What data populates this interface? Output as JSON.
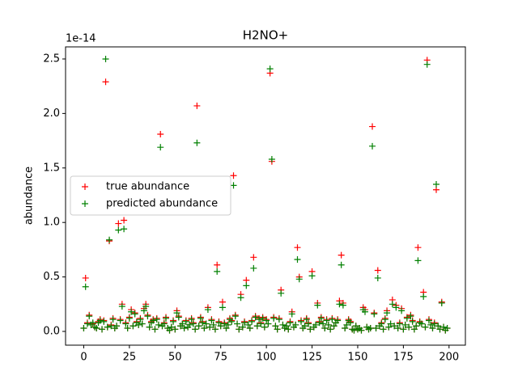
{
  "chart_data": {
    "type": "scatter",
    "title": "H2NO+",
    "ylabel": "abundance",
    "y_offset_label": "1e-14",
    "x": [
      0,
      1,
      2,
      3,
      4,
      5,
      6,
      7,
      8,
      9,
      10,
      11,
      12,
      13,
      14,
      15,
      16,
      17,
      18,
      19,
      20,
      21,
      22,
      23,
      24,
      25,
      26,
      27,
      28,
      29,
      30,
      31,
      32,
      33,
      34,
      35,
      36,
      37,
      38,
      39,
      40,
      41,
      42,
      43,
      44,
      45,
      46,
      47,
      48,
      49,
      50,
      51,
      52,
      53,
      54,
      55,
      56,
      57,
      58,
      59,
      60,
      61,
      62,
      63,
      64,
      65,
      66,
      67,
      68,
      69,
      70,
      71,
      72,
      73,
      74,
      75,
      76,
      77,
      78,
      79,
      80,
      81,
      82,
      83,
      84,
      85,
      86,
      87,
      88,
      89,
      90,
      91,
      92,
      93,
      94,
      95,
      96,
      97,
      98,
      99,
      100,
      101,
      102,
      103,
      104,
      105,
      106,
      107,
      108,
      109,
      110,
      111,
      112,
      113,
      114,
      115,
      116,
      117,
      118,
      119,
      120,
      121,
      122,
      123,
      124,
      125,
      126,
      127,
      128,
      129,
      130,
      131,
      132,
      133,
      134,
      135,
      136,
      137,
      138,
      139,
      140,
      141,
      142,
      143,
      144,
      145,
      146,
      147,
      148,
      149,
      150,
      151,
      152,
      153,
      154,
      155,
      156,
      157,
      158,
      159,
      160,
      161,
      162,
      163,
      164,
      165,
      166,
      167,
      168,
      169,
      170,
      171,
      172,
      173,
      174,
      175,
      176,
      177,
      178,
      179,
      180,
      181,
      182,
      183,
      184,
      185,
      186,
      187,
      188,
      189,
      190,
      191,
      192,
      193,
      194,
      195,
      196,
      197,
      198,
      199
    ],
    "series": [
      {
        "name": "true abundance",
        "color": "#ff0000",
        "values": [
          0.03,
          0.49,
          0.08,
          0.15,
          0.06,
          0.07,
          0.04,
          0.03,
          0.09,
          0.11,
          0.02,
          0.1,
          2.29,
          0.04,
          0.83,
          0.06,
          0.12,
          0.03,
          0.05,
          0.99,
          0.11,
          0.25,
          1.02,
          0.08,
          0.03,
          0.13,
          0.2,
          0.05,
          0.17,
          0.09,
          0.06,
          0.12,
          0.07,
          0.21,
          0.25,
          0.15,
          0.04,
          0.09,
          0.11,
          0.02,
          0.12,
          0.06,
          1.81,
          0.05,
          0.08,
          0.13,
          0.03,
          0.01,
          0.04,
          0.1,
          0.02,
          0.19,
          0.14,
          0.05,
          0.07,
          0.03,
          0.1,
          0.04,
          0.06,
          0.12,
          0.08,
          0.02,
          2.07,
          0.05,
          0.13,
          0.09,
          0.03,
          0.07,
          0.22,
          0.04,
          0.11,
          0.06,
          0.02,
          0.61,
          0.09,
          0.05,
          0.27,
          0.08,
          0.03,
          0.06,
          0.12,
          0.1,
          1.43,
          0.15,
          0.07,
          0.02,
          0.34,
          0.04,
          0.09,
          0.47,
          0.06,
          0.03,
          0.1,
          0.68,
          0.14,
          0.05,
          0.12,
          0.08,
          0.13,
          0.04,
          0.11,
          0.07,
          2.37,
          1.56,
          0.13,
          0.05,
          0.02,
          0.12,
          0.38,
          0.06,
          0.03,
          0.05,
          0.02,
          0.09,
          0.18,
          0.04,
          0.06,
          0.77,
          0.5,
          0.1,
          0.03,
          0.05,
          0.12,
          0.08,
          0.02,
          0.55,
          0.04,
          0.06,
          0.26,
          0.09,
          0.13,
          0.07,
          0.03,
          0.11,
          0.06,
          0.02,
          0.12,
          0.05,
          0.08,
          0.11,
          0.28,
          0.7,
          0.26,
          0.03,
          0.06,
          0.11,
          0.09,
          0.02,
          0.01,
          0.05,
          0.02,
          0.03,
          0.01,
          0.22,
          0.2,
          0.04,
          0.02,
          0.03,
          1.88,
          0.17,
          0.03,
          0.56,
          0.05,
          0.08,
          0.02,
          0.12,
          0.19,
          0.04,
          0.07,
          0.29,
          0.05,
          0.24,
          0.03,
          0.08,
          0.21,
          0.02,
          0.06,
          0.13,
          0.04,
          0.15,
          0.1,
          0.02,
          0.05,
          0.77,
          0.09,
          0.07,
          0.36,
          0.04,
          2.49,
          0.11,
          0.06,
          0.03,
          0.08,
          1.3,
          0.05,
          0.02,
          0.27,
          0.04,
          0.01,
          0.03
        ]
      },
      {
        "name": "predicted abundance",
        "color": "#008000",
        "values": [
          0.03,
          0.41,
          0.07,
          0.14,
          0.06,
          0.08,
          0.04,
          0.03,
          0.08,
          0.1,
          0.02,
          0.09,
          2.5,
          0.04,
          0.84,
          0.05,
          0.11,
          0.03,
          0.05,
          0.93,
          0.1,
          0.23,
          0.94,
          0.07,
          0.03,
          0.12,
          0.18,
          0.05,
          0.16,
          0.08,
          0.06,
          0.11,
          0.07,
          0.19,
          0.23,
          0.14,
          0.04,
          0.08,
          0.1,
          0.02,
          0.11,
          0.06,
          1.69,
          0.05,
          0.07,
          0.12,
          0.03,
          0.01,
          0.04,
          0.09,
          0.02,
          0.17,
          0.13,
          0.05,
          0.07,
          0.03,
          0.09,
          0.04,
          0.06,
          0.11,
          0.07,
          0.02,
          1.73,
          0.05,
          0.12,
          0.08,
          0.03,
          0.07,
          0.2,
          0.04,
          0.1,
          0.06,
          0.02,
          0.55,
          0.08,
          0.05,
          0.22,
          0.07,
          0.03,
          0.06,
          0.11,
          0.09,
          1.34,
          0.14,
          0.07,
          0.02,
          0.31,
          0.04,
          0.08,
          0.42,
          0.06,
          0.03,
          0.09,
          0.58,
          0.13,
          0.05,
          0.11,
          0.07,
          0.12,
          0.04,
          0.1,
          0.07,
          2.41,
          1.58,
          0.12,
          0.05,
          0.02,
          0.11,
          0.35,
          0.06,
          0.03,
          0.05,
          0.02,
          0.08,
          0.16,
          0.04,
          0.06,
          0.66,
          0.48,
          0.09,
          0.03,
          0.05,
          0.11,
          0.07,
          0.02,
          0.51,
          0.04,
          0.06,
          0.24,
          0.08,
          0.12,
          0.07,
          0.03,
          0.1,
          0.06,
          0.02,
          0.11,
          0.05,
          0.08,
          0.1,
          0.25,
          0.61,
          0.24,
          0.03,
          0.06,
          0.1,
          0.08,
          0.02,
          0.01,
          0.05,
          0.02,
          0.03,
          0.01,
          0.2,
          0.18,
          0.04,
          0.02,
          0.03,
          1.7,
          0.16,
          0.03,
          0.49,
          0.05,
          0.07,
          0.02,
          0.11,
          0.17,
          0.04,
          0.07,
          0.25,
          0.05,
          0.22,
          0.03,
          0.07,
          0.19,
          0.02,
          0.06,
          0.12,
          0.04,
          0.14,
          0.09,
          0.02,
          0.05,
          0.65,
          0.08,
          0.07,
          0.32,
          0.04,
          2.45,
          0.1,
          0.06,
          0.03,
          0.07,
          1.35,
          0.05,
          0.02,
          0.26,
          0.04,
          0.01,
          0.03
        ]
      }
    ],
    "xlim": [
      -9.95,
      208.95
    ],
    "xticks": [
      0,
      25,
      50,
      75,
      100,
      125,
      150,
      175,
      200
    ],
    "ylim": [
      -0.126,
      2.611
    ],
    "yticks": [
      {
        "value": 0,
        "label": "0.0"
      },
      0.5,
      {
        "value": 1,
        "label": "1.0"
      },
      1.5,
      {
        "value": 2,
        "label": "2.0"
      },
      2.5
    ],
    "legend": "center left"
  }
}
